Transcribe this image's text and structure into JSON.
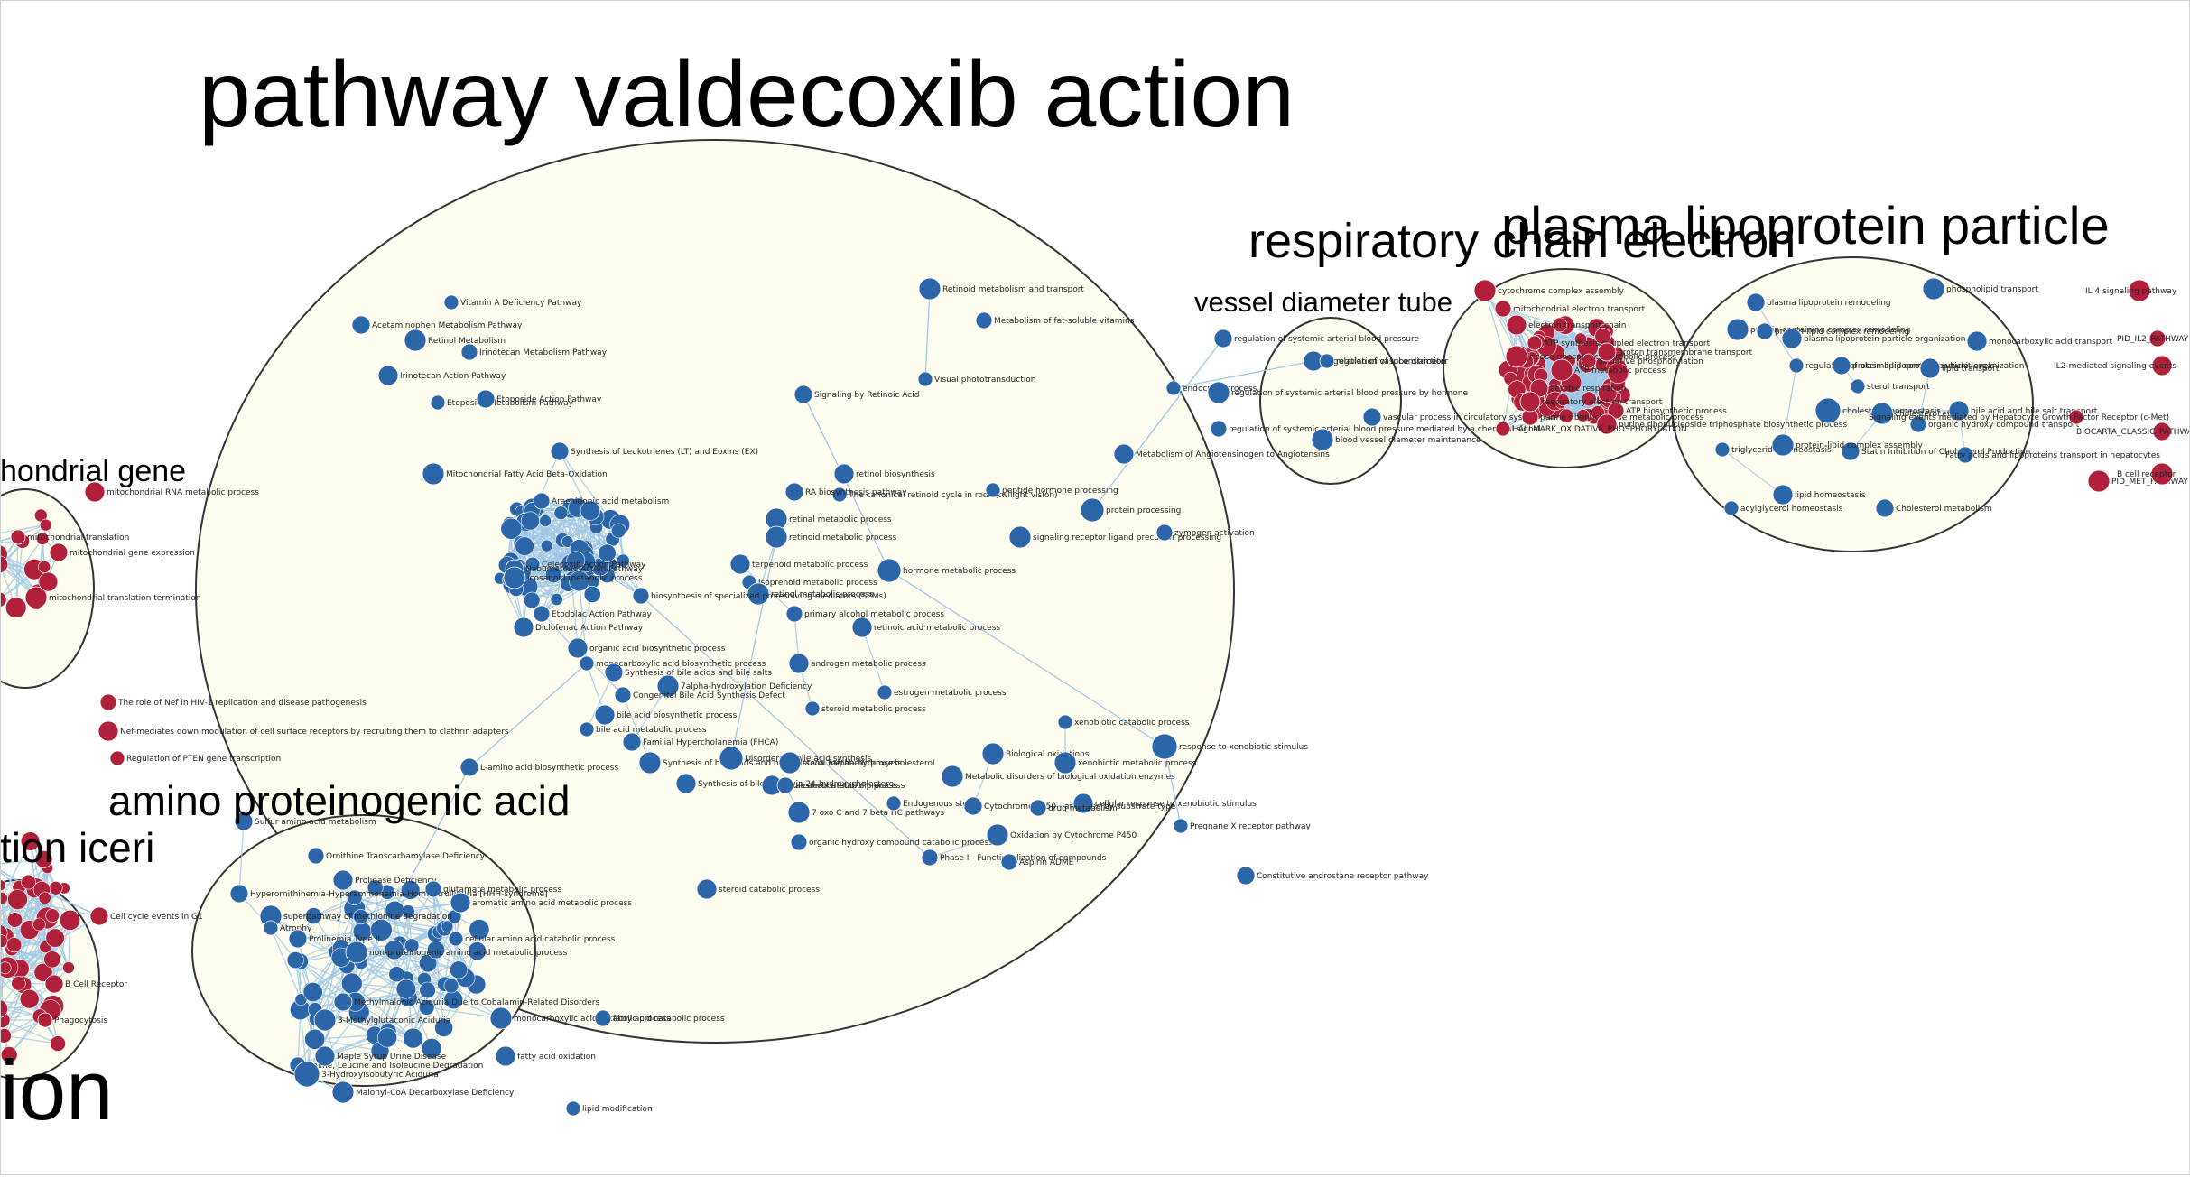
{
  "colors": {
    "background": "#ffffff",
    "cluster_fill": "#fffdf0",
    "cluster_stroke": "#333333",
    "edge": "#9ec8e6",
    "node_blue": "#2b66a8",
    "node_red": "#b0203a",
    "label": "#000000"
  },
  "clusters": [
    {
      "id": "valdecoxib",
      "label": "pathway valdecoxib action"
    },
    {
      "id": "vessel",
      "label": "vessel diameter tube"
    },
    {
      "id": "respiratory",
      "label": "respiratory chain electron"
    },
    {
      "id": "lipoprotein",
      "label": "plasma lipoprotein particle"
    },
    {
      "id": "mito",
      "label": "hondrial gene"
    },
    {
      "id": "amino",
      "label": "amino proteinogenic acid"
    },
    {
      "id": "iceri",
      "label": "tion iceri"
    },
    {
      "id": "ion",
      "label": "ion"
    }
  ],
  "nodes": [
    {
      "label": "Vitamin A Deficiency Pathway",
      "color": "blue"
    },
    {
      "label": "Acetaminophen Metabolism Pathway",
      "color": "blue"
    },
    {
      "label": "Retinol Metabolism",
      "color": "blue"
    },
    {
      "label": "Irinotecan Metabolism Pathway",
      "color": "blue"
    },
    {
      "label": "Irinotecan Action Pathway",
      "color": "blue"
    },
    {
      "label": "Etoposide Metabolism Pathway",
      "color": "blue"
    },
    {
      "label": "Etoposide Action Pathway",
      "color": "blue"
    },
    {
      "label": "Retinoid metabolism and transport",
      "color": "blue"
    },
    {
      "label": "Metabolism of fat-soluble vitamins",
      "color": "blue"
    },
    {
      "label": "Signaling by Retinoic Acid",
      "color": "blue"
    },
    {
      "label": "Visual phototransduction",
      "color": "blue"
    },
    {
      "label": "Synthesis of Leukotrienes (LT) and Eoxins (EX)",
      "color": "blue"
    },
    {
      "label": "Mitochondrial Fatty Acid Beta-Oxidation",
      "color": "blue"
    },
    {
      "label": "Arachidonic acid metabolism",
      "color": "blue"
    },
    {
      "label": "retinol biosynthesis",
      "color": "blue"
    },
    {
      "label": "The canonical retinoid cycle in rods (twilight vision)",
      "color": "blue"
    },
    {
      "label": "RA biosynthesis pathway",
      "color": "blue"
    },
    {
      "label": "retinal metabolic process",
      "color": "blue"
    },
    {
      "label": "retinoid metabolic process",
      "color": "blue"
    },
    {
      "label": "terpenoid metabolic process",
      "color": "blue"
    },
    {
      "label": "isoprenoid metabolic process",
      "color": "blue"
    },
    {
      "label": "hormone metabolic process",
      "color": "blue"
    },
    {
      "label": "retinol metabolic process",
      "color": "blue"
    },
    {
      "label": "primary alcohol metabolic process",
      "color": "blue"
    },
    {
      "label": "retinoic acid metabolic process",
      "color": "blue"
    },
    {
      "label": "peptide hormone processing",
      "color": "blue"
    },
    {
      "label": "protein processing",
      "color": "blue"
    },
    {
      "label": "signaling receptor ligand precursor processing",
      "color": "blue"
    },
    {
      "label": "zymogen activation",
      "color": "blue"
    },
    {
      "label": "Metabolism of Angiotensinogen to Angiotensins",
      "color": "blue"
    },
    {
      "label": "endocrine process",
      "color": "blue"
    },
    {
      "label": "regulation of systemic arterial blood pressure",
      "color": "blue"
    },
    {
      "label": "regulation of systemic arterial blood pressure by hormone",
      "color": "blue"
    },
    {
      "label": "regulation of systemic arterial blood pressure mediated by a chemical signal",
      "color": "blue"
    },
    {
      "label": "regulation of vasoconstriction",
      "color": "blue"
    },
    {
      "label": "regulation of tube diameter",
      "color": "blue"
    },
    {
      "label": "vascular process in circulatory system",
      "color": "blue"
    },
    {
      "label": "blood vessel diameter maintenance",
      "color": "blue"
    },
    {
      "label": "Etodolac Action Pathway",
      "color": "blue"
    },
    {
      "label": "Diclofenac Action Pathway",
      "color": "blue"
    },
    {
      "label": "Celecoxib Action Pathway",
      "color": "blue"
    },
    {
      "label": "Nabumetone Action Pathway",
      "color": "blue"
    },
    {
      "label": "icosanoid metabolic process",
      "color": "blue"
    },
    {
      "label": "biosynthesis of specialized proresolving mediators (SPMs)",
      "color": "blue"
    },
    {
      "label": "organic acid biosynthetic process",
      "color": "blue"
    },
    {
      "label": "monocarboxylic acid biosynthetic process",
      "color": "blue"
    },
    {
      "label": "Synthesis of bile acids and bile salts",
      "color": "blue"
    },
    {
      "label": "7alpha-hydroxylation Deficiency",
      "color": "blue"
    },
    {
      "label": "Congenital Bile Acid Synthesis Defect",
      "color": "blue"
    },
    {
      "label": "bile acid biosynthetic process",
      "color": "blue"
    },
    {
      "label": "bile acid metabolic process",
      "color": "blue"
    },
    {
      "label": "Familial Hypercholanemia (FHCA)",
      "color": "blue"
    },
    {
      "label": "Synthesis of bile acids and bile salts via 7alpha-hydroxycholesterol",
      "color": "blue"
    },
    {
      "label": "Disorders of bile acid synthesis",
      "color": "blue"
    },
    {
      "label": "Synthesis of bile acids via 24-hydroxycholesterol",
      "color": "blue"
    },
    {
      "label": "steroid metabolic process",
      "color": "blue"
    },
    {
      "label": "cholesterol metabolic process",
      "color": "blue"
    },
    {
      "label": "sterol metabolic process",
      "color": "blue"
    },
    {
      "label": "alcohol catabolic process",
      "color": "blue"
    },
    {
      "label": "androgen metabolic process",
      "color": "blue"
    },
    {
      "label": "estrogen metabolic process",
      "color": "blue"
    },
    {
      "label": "L-amino acid biosynthetic process",
      "color": "blue"
    },
    {
      "label": "7 oxo C and 7 beta HC pathways",
      "color": "blue"
    },
    {
      "label": "organic hydroxy compound catabolic process",
      "color": "blue"
    },
    {
      "label": "steroid catabolic process",
      "color": "blue"
    },
    {
      "label": "xenobiotic catabolic process",
      "color": "blue"
    },
    {
      "label": "response to xenobiotic stimulus",
      "color": "blue"
    },
    {
      "label": "Biological oxidations",
      "color": "blue"
    },
    {
      "label": "Phase I - Functionalization of compounds",
      "color": "blue"
    },
    {
      "label": "Metabolic disorders of biological oxidation enzymes",
      "color": "blue"
    },
    {
      "label": "Endogenous sterols",
      "color": "blue"
    },
    {
      "label": "Cytochrome P450 - arranged by substrate type",
      "color": "blue"
    },
    {
      "label": "Oxidation by Cytochrome P450",
      "color": "blue"
    },
    {
      "label": "Aspirin ADME",
      "color": "blue"
    },
    {
      "label": "cellular response to xenobiotic stimulus",
      "color": "blue"
    },
    {
      "label": "Pregnane X receptor pathway",
      "color": "blue"
    },
    {
      "label": "Constitutive androstane receptor pathway",
      "color": "blue"
    },
    {
      "label": "xenobiotic metabolic process",
      "color": "blue"
    },
    {
      "label": "drug metabolism",
      "color": "blue"
    },
    {
      "label": "mitochondrial RNA metabolic process",
      "color": "red"
    },
    {
      "label": "mitochondrial translation",
      "color": "red"
    },
    {
      "label": "mitochondrial gene expression",
      "color": "red"
    },
    {
      "label": "mitochondrial translation termination",
      "color": "red"
    },
    {
      "label": "The role of Nef in HIV-1 replication and disease pathogenesis",
      "color": "red"
    },
    {
      "label": "Nef-mediates down modulation of cell surface receptors by recruiting them to clathrin adapters",
      "color": "red"
    },
    {
      "label": "Regulation of PTEN gene transcription",
      "color": "red"
    },
    {
      "label": "Hyperornithinemia-Hyperammonemia-Homocitrullinuria [HHH-syndrome]",
      "color": "blue"
    },
    {
      "label": "superpathway of methionine degradation",
      "color": "blue"
    },
    {
      "label": "Ornithine Transcarbamylase Deficiency",
      "color": "blue"
    },
    {
      "label": "Prolidase Deficiency",
      "color": "blue"
    },
    {
      "label": "Atrophy",
      "color": "blue"
    },
    {
      "label": "Prolinemia Type II",
      "color": "blue"
    },
    {
      "label": "non-proteinogenic amino acid metabolic process",
      "color": "blue"
    },
    {
      "label": "glutamate metabolic process",
      "color": "blue"
    },
    {
      "label": "aromatic amino acid metabolic process",
      "color": "blue"
    },
    {
      "label": "cellular amino acid catabolic process",
      "color": "blue"
    },
    {
      "label": "Methylmalonic Aciduria Due to Cobalamin-Related Disorders",
      "color": "blue"
    },
    {
      "label": "3-Methylglutaconic Aciduria",
      "color": "blue"
    },
    {
      "label": "Valine, Leucine and Isoleucine Degradation",
      "color": "blue"
    },
    {
      "label": "Maple Syrup Urine Disease",
      "color": "blue"
    },
    {
      "label": "3-Hydroxyisobutyric Aciduria",
      "color": "blue"
    },
    {
      "label": "Malonyl-CoA Decarboxylase Deficiency",
      "color": "blue"
    },
    {
      "label": "monocarboxylic acid catabolic process",
      "color": "blue"
    },
    {
      "label": "fatty acid catabolic process",
      "color": "blue"
    },
    {
      "label": "fatty acid oxidation",
      "color": "blue"
    },
    {
      "label": "lipid modification",
      "color": "blue"
    },
    {
      "label": "Sulfur amino acid metabolism",
      "color": "blue"
    },
    {
      "label": "cytochrome complex assembly",
      "color": "red"
    },
    {
      "label": "mitochondrial electron transport",
      "color": "red"
    },
    {
      "label": "electron transport chain",
      "color": "red"
    },
    {
      "label": "ATP synthesis coupled electron transport",
      "color": "red"
    },
    {
      "label": "aerobic respiration",
      "color": "red"
    },
    {
      "label": "ribose phosphate metabolic process",
      "color": "red"
    },
    {
      "label": "purine ribonucleotide metabolic process",
      "color": "red"
    },
    {
      "label": "respiratory electron transport",
      "color": "red"
    },
    {
      "label": "oxidative phosphorylation",
      "color": "red"
    },
    {
      "label": "proton transmembrane transport",
      "color": "red"
    },
    {
      "label": "ATP metabolic process",
      "color": "red"
    },
    {
      "label": "ATP biosynthetic process",
      "color": "red"
    },
    {
      "label": "purine ribonucleoside triphosphate biosynthetic process",
      "color": "red"
    },
    {
      "label": "HALLMARK_OXIDATIVE_PHOSPHORYLATION",
      "color": "red"
    },
    {
      "label": "plasma lipoprotein remodeling",
      "color": "blue"
    },
    {
      "label": "protein-containing complex remodeling",
      "color": "blue"
    },
    {
      "label": "protein-lipid complex remodeling",
      "color": "blue"
    },
    {
      "label": "plasma lipoprotein particle organization",
      "color": "blue"
    },
    {
      "label": "regulation of plasma lipoprotein particle levels",
      "color": "blue"
    },
    {
      "label": "protein-lipid complex subunit organization",
      "color": "blue"
    },
    {
      "label": "phospholipid transport",
      "color": "blue"
    },
    {
      "label": "monocarboxylic acid transport",
      "color": "blue"
    },
    {
      "label": "lipid transport",
      "color": "blue"
    },
    {
      "label": "sterol transport",
      "color": "blue"
    },
    {
      "label": "cholesterol homeostasis",
      "color": "blue"
    },
    {
      "label": "cholesterol efflux",
      "color": "blue"
    },
    {
      "label": "organic hydroxy compound transport",
      "color": "blue"
    },
    {
      "label": "bile acid and bile salt transport",
      "color": "blue"
    },
    {
      "label": "triglyceride homeostasis",
      "color": "blue"
    },
    {
      "label": "Statin Inhibition of Cholesterol Production",
      "color": "blue"
    },
    {
      "label": "protein-lipid complex assembly",
      "color": "blue"
    },
    {
      "label": "Fatty acids and lipoproteins transport in hepatocytes",
      "color": "blue"
    },
    {
      "label": "lipid homeostasis",
      "color": "blue"
    },
    {
      "label": "acylglycerol homeostasis",
      "color": "blue"
    },
    {
      "label": "Cholesterol metabolism",
      "color": "blue"
    },
    {
      "label": "IL 4 signaling pathway",
      "color": "red"
    },
    {
      "label": "PID_IL2_PATHWAY",
      "color": "red"
    },
    {
      "label": "IL2-mediated signaling events",
      "color": "red"
    },
    {
      "label": "Signaling events mediated by Hepatocyte Growth Factor Receptor (c-Met)",
      "color": "red"
    },
    {
      "label": "BIOCARTA_CLASSIC_PATHWAY",
      "color": "red"
    },
    {
      "label": "PID_MET_PATHWAY",
      "color": "red"
    },
    {
      "label": "B cell receptor",
      "color": "red"
    },
    {
      "label": "B Cell Receptor",
      "color": "red"
    },
    {
      "label": "Phagocytosis",
      "color": "red"
    },
    {
      "label": "Cell cycle events in G1",
      "color": "red"
    }
  ]
}
